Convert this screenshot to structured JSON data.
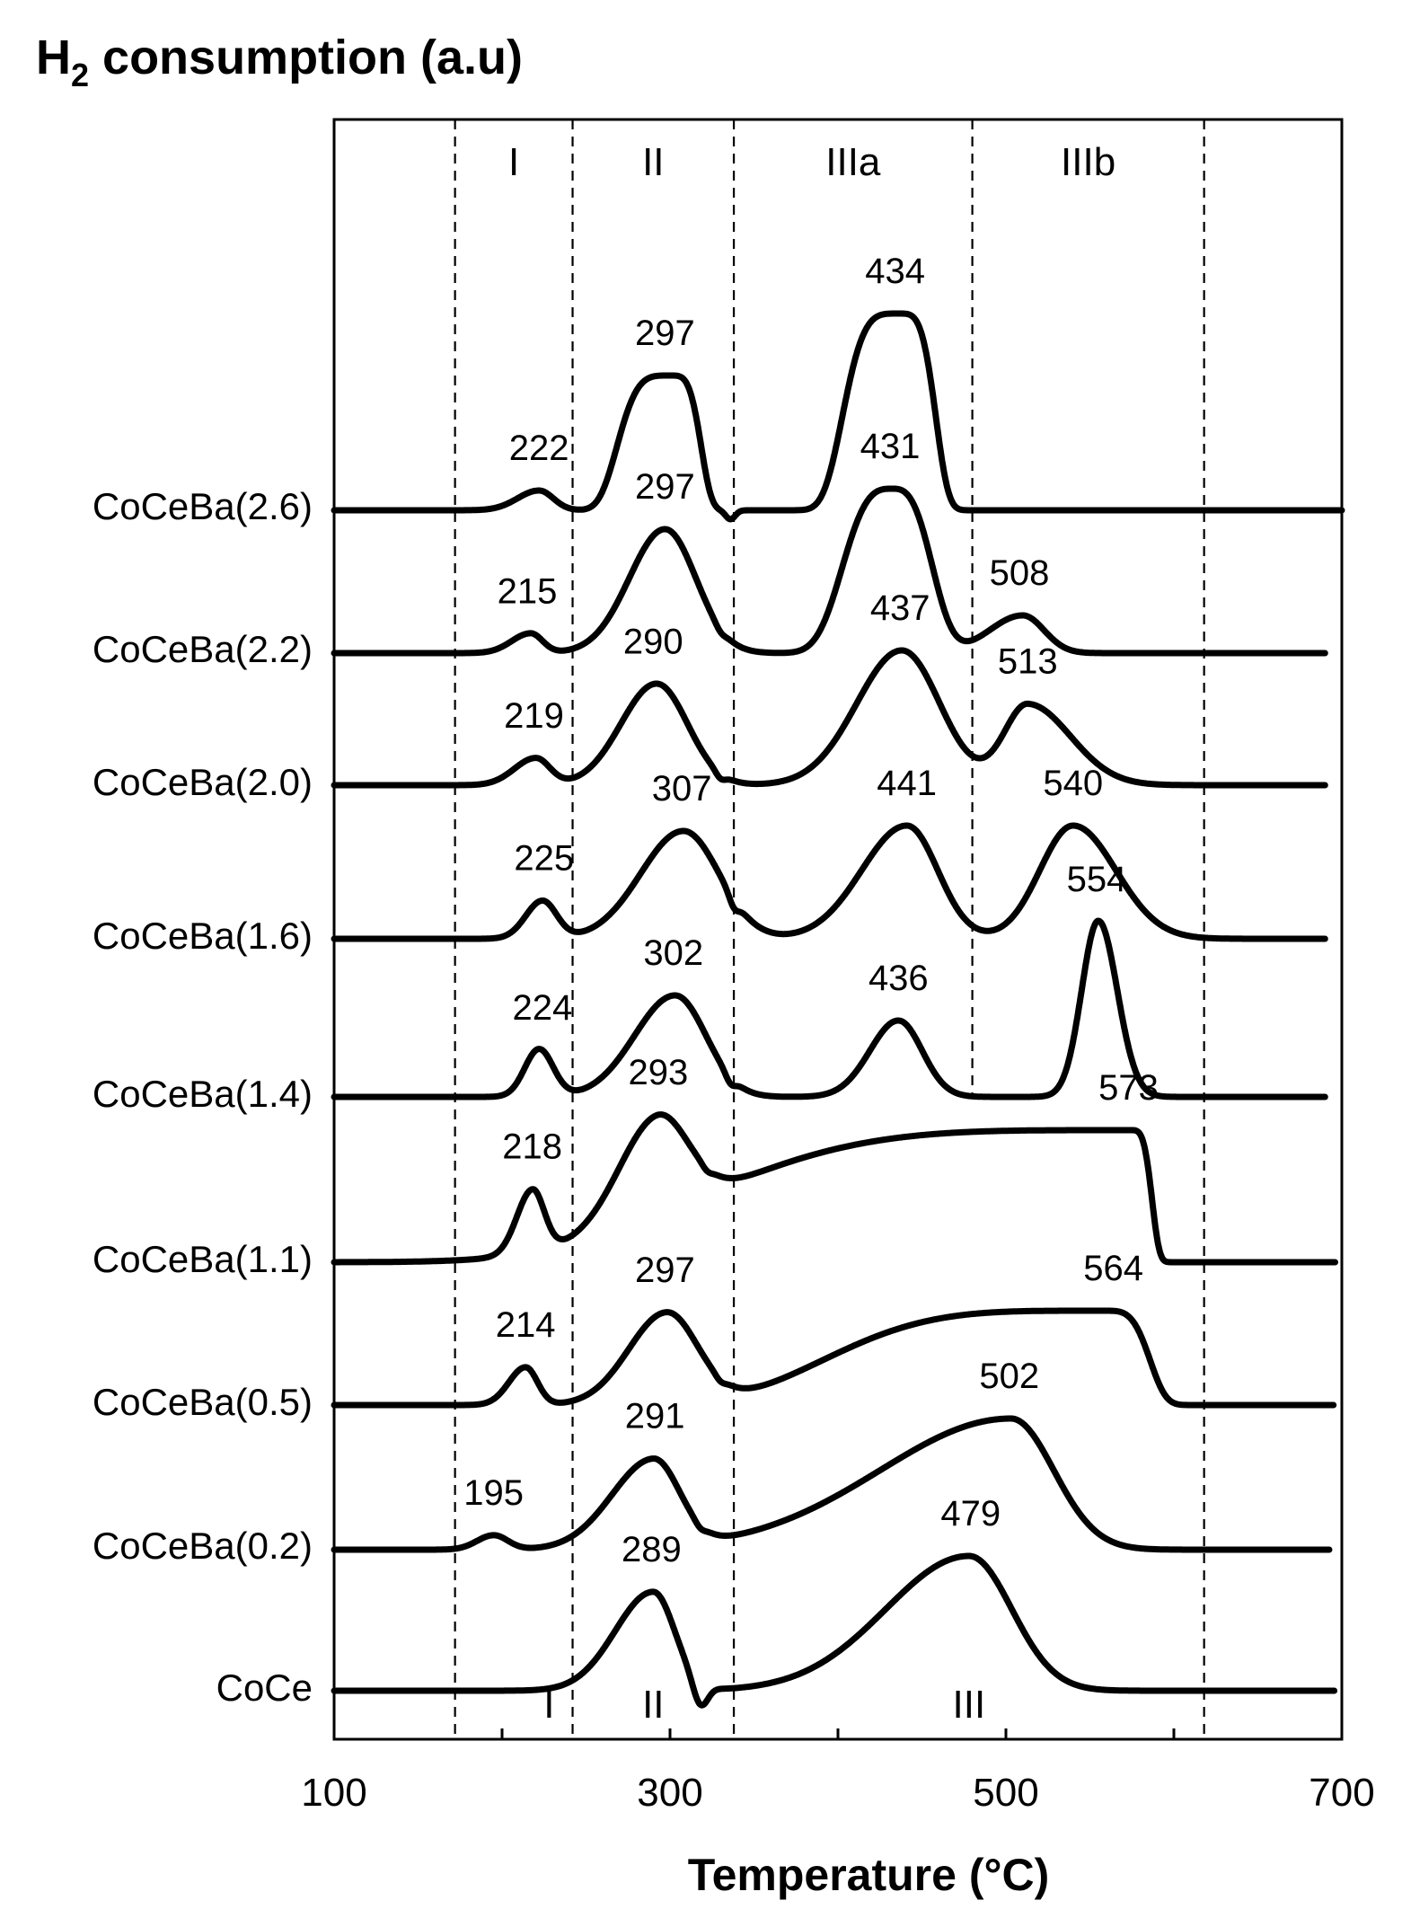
{
  "chart_data": {
    "type": "line",
    "ylabel_main": "H",
    "ylabel_sub": "2",
    "ylabel_rest": " consumption (a.u)",
    "xlabel": "Temperature (°C)",
    "xlim": [
      100,
      700
    ],
    "x_ticks": [
      "100",
      "300",
      "500",
      "700"
    ],
    "y_ticks_shown": false,
    "region_boundaries_celsius": [
      172,
      242,
      338,
      480,
      618
    ],
    "top_regions": [
      {
        "label": "I",
        "x": 207
      },
      {
        "label": "II",
        "x": 290
      },
      {
        "label": "IIIa",
        "x": 409
      },
      {
        "label": "IIIb",
        "x": 549
      }
    ],
    "bottom_regions": [
      {
        "label": "I",
        "x": 228
      },
      {
        "label": "II",
        "x": 290
      },
      {
        "label": "III",
        "x": 478
      }
    ],
    "series": [
      {
        "name": "CoCeBa(2.6)",
        "peaks": [
          {
            "x": 222,
            "label": "222"
          },
          {
            "x": 297,
            "label": "297"
          },
          {
            "x": 434,
            "label": "434"
          }
        ]
      },
      {
        "name": "CoCeBa(2.2)",
        "peaks": [
          {
            "x": 215,
            "label": "215"
          },
          {
            "x": 297,
            "label": "297"
          },
          {
            "x": 431,
            "label": "431"
          },
          {
            "x": 508,
            "label": "508"
          }
        ]
      },
      {
        "name": "CoCeBa(2.0)",
        "peaks": [
          {
            "x": 219,
            "label": "219"
          },
          {
            "x": 290,
            "label": "290"
          },
          {
            "x": 437,
            "label": "437"
          },
          {
            "x": 513,
            "label": "513"
          }
        ]
      },
      {
        "name": "CoCeBa(1.6)",
        "peaks": [
          {
            "x": 225,
            "label": "225"
          },
          {
            "x": 307,
            "label": "307"
          },
          {
            "x": 441,
            "label": "441"
          },
          {
            "x": 540,
            "label": "540"
          }
        ]
      },
      {
        "name": "CoCeBa(1.4)",
        "peaks": [
          {
            "x": 224,
            "label": "224"
          },
          {
            "x": 302,
            "label": "302"
          },
          {
            "x": 436,
            "label": "436"
          },
          {
            "x": 554,
            "label": "554"
          }
        ]
      },
      {
        "name": "CoCeBa(1.1)",
        "peaks": [
          {
            "x": 218,
            "label": "218"
          },
          {
            "x": 293,
            "label": "293"
          },
          {
            "x": 573,
            "label": "573"
          }
        ]
      },
      {
        "name": "CoCeBa(0.5)",
        "peaks": [
          {
            "x": 214,
            "label": "214"
          },
          {
            "x": 297,
            "label": "297"
          },
          {
            "x": 564,
            "label": "564"
          }
        ]
      },
      {
        "name": "CoCeBa(0.2)",
        "peaks": [
          {
            "x": 195,
            "label": "195"
          },
          {
            "x": 291,
            "label": "291"
          },
          {
            "x": 502,
            "label": "502"
          }
        ]
      },
      {
        "name": "CoCe",
        "peaks": [
          {
            "x": 289,
            "label": "289"
          },
          {
            "x": 479,
            "label": "479"
          }
        ]
      }
    ]
  }
}
